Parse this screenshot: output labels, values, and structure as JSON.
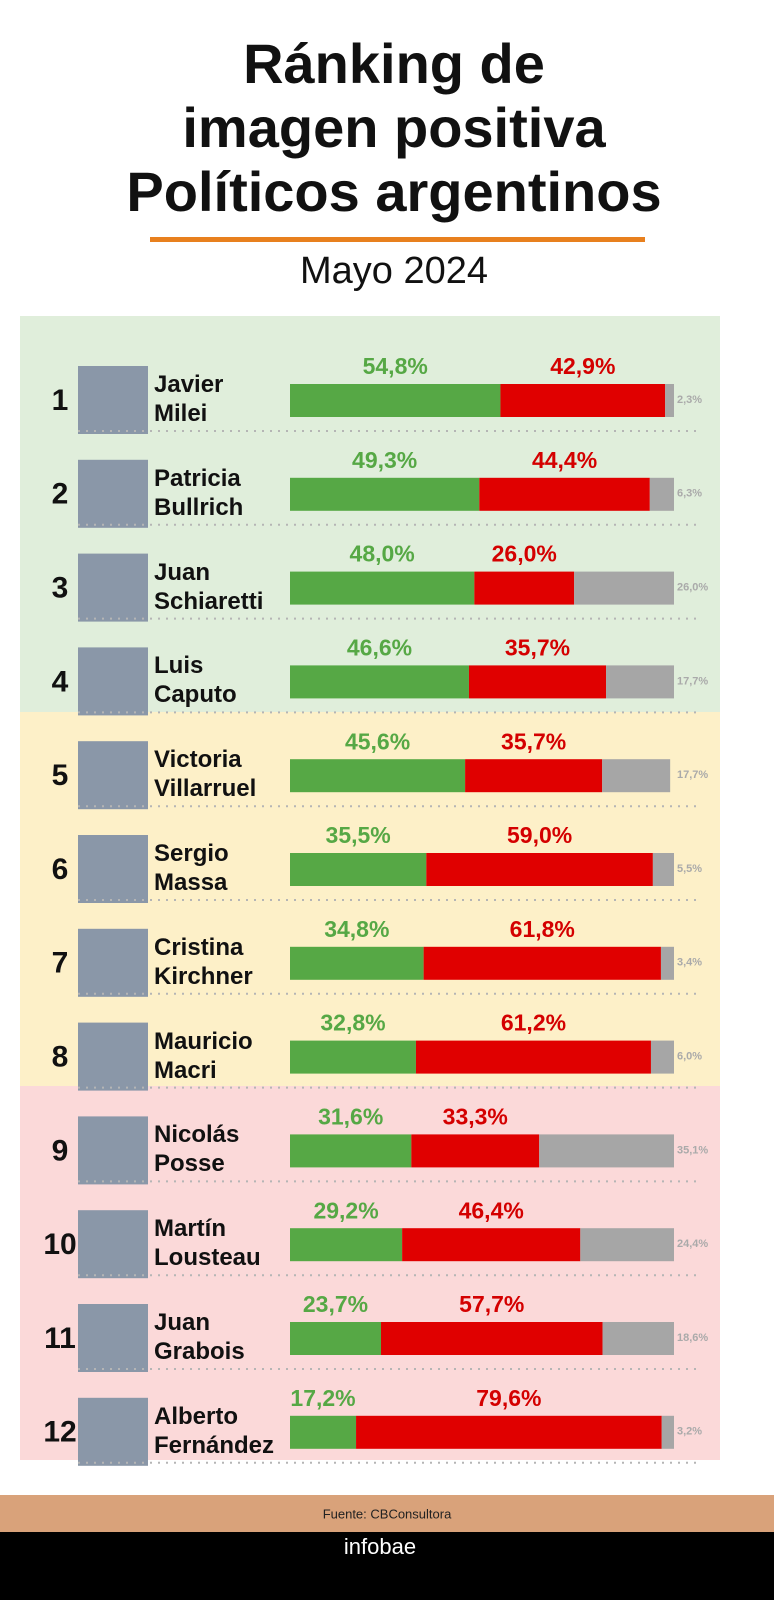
{
  "chart_data": {
    "type": "bar",
    "orientation": "horizontal",
    "stacked": true,
    "title": [
      "Ránking de",
      "imagen positiva",
      "Políticos argentinos"
    ],
    "subtitle": "Mayo 2024",
    "ranks": [
      1,
      2,
      3,
      4,
      5,
      6,
      7,
      8,
      9,
      10,
      11,
      12
    ],
    "categories": [
      "Javier Milei",
      "Patricia Bullrich",
      "Juan Schiaretti",
      "Luis Caputo",
      "Victoria Villarruel",
      "Sergio Massa",
      "Cristina Kirchner",
      "Mauricio Macri",
      "Nicolás Posse",
      "Martín Lousteau",
      "Juan Grabois",
      "Alberto Fernández"
    ],
    "xlim": [
      0,
      100
    ],
    "series": [
      {
        "color": "#56a845",
        "values": [
          54.8,
          49.3,
          48.0,
          46.6,
          45.6,
          35.5,
          34.8,
          32.8,
          31.6,
          29.2,
          23.7,
          17.2
        ],
        "value_labels": [
          "54,8%",
          "49,3%",
          "48,0%",
          "46,6%",
          "45,6%",
          "35,5%",
          "34,8%",
          "32,8%",
          "31,6%",
          "29,2%",
          "23,7%",
          "17,2%"
        ]
      },
      {
        "color": "#e00000",
        "values": [
          42.9,
          44.4,
          26.0,
          35.7,
          35.7,
          59.0,
          61.8,
          61.2,
          33.3,
          46.4,
          57.7,
          79.6
        ],
        "value_labels": [
          "42,9%",
          "44,4%",
          "26,0%",
          "35,7%",
          "35,7%",
          "59,0%",
          "61,8%",
          "61,2%",
          "33,3%",
          "46,4%",
          "57,7%",
          "79,6%"
        ]
      },
      {
        "color": "#a6a6a6",
        "values": [
          2.3,
          6.3,
          26.0,
          17.7,
          17.7,
          5.5,
          3.4,
          6.0,
          35.1,
          24.4,
          18.6,
          3.2
        ],
        "value_labels": [
          "2,3%",
          "6,3%",
          "26,0%",
          "17,7%",
          "17,7%",
          "5,5%",
          "3,4%",
          "6,0%",
          "35,1%",
          "24,4%",
          "18,6%",
          "3,2%"
        ]
      }
    ],
    "source": "Fuente: CBConsultora",
    "brand": "infobae"
  }
}
